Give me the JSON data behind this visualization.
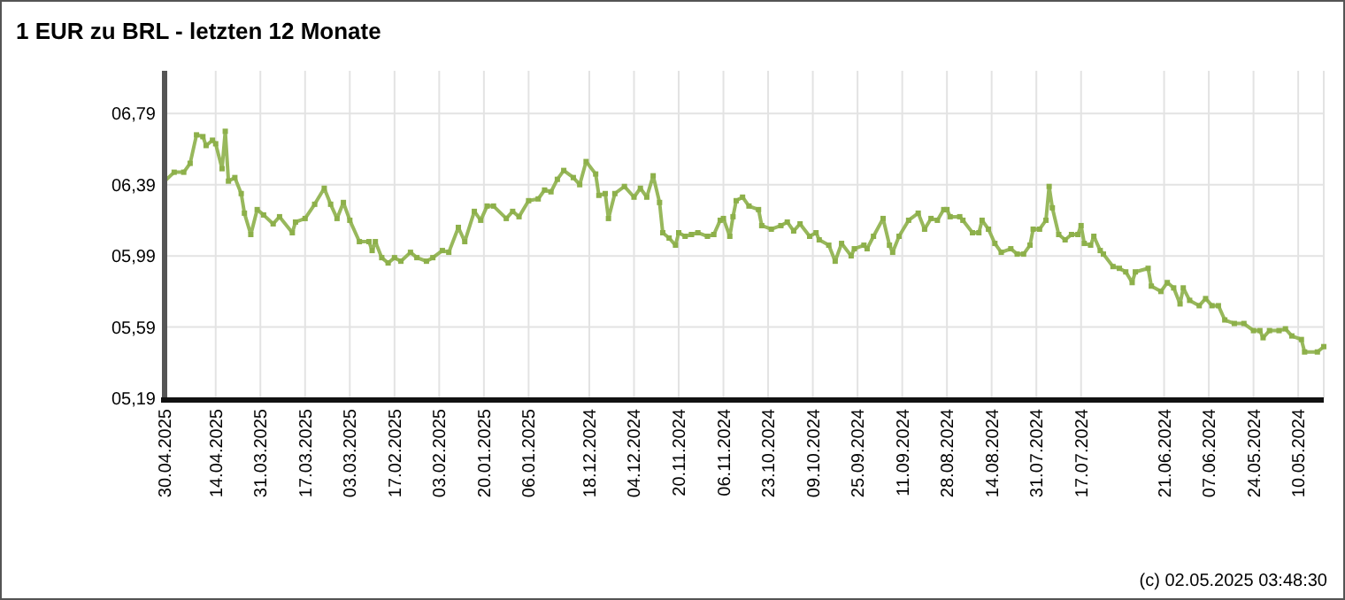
{
  "chart_data": {
    "type": "line",
    "title": "1 EUR zu BRL - letzten 12 Monate",
    "annotations": [
      "(c) 02.05.2025 03:48:30"
    ],
    "xlim": [
      "2025-04-30",
      "2024-05-02"
    ],
    "xticks": [
      {
        "value": "2025-04-30",
        "label": "30.04.2025"
      },
      {
        "value": "2025-04-14",
        "label": "14.04.2025"
      },
      {
        "value": "2025-03-31",
        "label": "31.03.2025"
      },
      {
        "value": "2025-03-17",
        "label": "17.03.2025"
      },
      {
        "value": "2025-03-03",
        "label": "03.03.2025"
      },
      {
        "value": "2025-02-17",
        "label": "17.02.2025"
      },
      {
        "value": "2025-02-03",
        "label": "03.02.2025"
      },
      {
        "value": "2025-01-20",
        "label": "20.01.2025"
      },
      {
        "value": "2025-01-06",
        "label": "06.01.2025"
      },
      {
        "value": "2024-12-18",
        "label": "18.12.2024"
      },
      {
        "value": "2024-12-04",
        "label": "04.12.2024"
      },
      {
        "value": "2024-11-20",
        "label": "20.11.2024"
      },
      {
        "value": "2024-11-06",
        "label": "06.11.2024"
      },
      {
        "value": "2024-10-23",
        "label": "23.10.2024"
      },
      {
        "value": "2024-10-09",
        "label": "09.10.2024"
      },
      {
        "value": "2024-09-25",
        "label": "25.09.2024"
      },
      {
        "value": "2024-09-11",
        "label": "11.09.2024"
      },
      {
        "value": "2024-08-28",
        "label": "28.08.2024"
      },
      {
        "value": "2024-08-14",
        "label": "14.08.2024"
      },
      {
        "value": "2024-07-31",
        "label": "31.07.2024"
      },
      {
        "value": "2024-07-17",
        "label": "17.07.2024"
      },
      {
        "value": "2024-06-21",
        "label": "21.06.2024"
      },
      {
        "value": "2024-06-07",
        "label": "07.06.2024"
      },
      {
        "value": "2024-05-24",
        "label": "24.05.2024"
      },
      {
        "value": "2024-05-10",
        "label": "10.05.2024"
      }
    ],
    "ylim": [
      5.19,
      7.03
    ],
    "yticks": [
      {
        "value": 5.19,
        "label": "05,19"
      },
      {
        "value": 5.59,
        "label": "05,59"
      },
      {
        "value": 5.99,
        "label": "05,99"
      },
      {
        "value": 6.39,
        "label": "06,39"
      },
      {
        "value": 6.79,
        "label": "06,79"
      }
    ],
    "grid": true,
    "marker": "square",
    "line_style": "solid",
    "series": [
      {
        "color": "#8db04a",
        "x": [
          "2025-04-30",
          "2025-04-27",
          "2025-04-24",
          "2025-04-22",
          "2025-04-20",
          "2025-04-18",
          "2025-04-17",
          "2025-04-15",
          "2025-04-14",
          "2025-04-12",
          "2025-04-11",
          "2025-04-10",
          "2025-04-08",
          "2025-04-06",
          "2025-04-05",
          "2025-04-03",
          "2025-04-01",
          "2025-03-30",
          "2025-03-27",
          "2025-03-25",
          "2025-03-21",
          "2025-03-20",
          "2025-03-17",
          "2025-03-14",
          "2025-03-11",
          "2025-03-09",
          "2025-03-07",
          "2025-03-05",
          "2025-03-03",
          "2025-02-28",
          "2025-02-25",
          "2025-02-24",
          "2025-02-23",
          "2025-02-21",
          "2025-02-19",
          "2025-02-17",
          "2025-02-15",
          "2025-02-12",
          "2025-02-10",
          "2025-02-07",
          "2025-02-05",
          "2025-02-02",
          "2025-01-31",
          "2025-01-28",
          "2025-01-26",
          "2025-01-23",
          "2025-01-21",
          "2025-01-19",
          "2025-01-17",
          "2025-01-13",
          "2025-01-11",
          "2025-01-09",
          "2025-01-06",
          "2025-01-03",
          "2025-01-01",
          "2024-12-30",
          "2024-12-28",
          "2024-12-26",
          "2024-12-23",
          "2024-12-21",
          "2024-12-19",
          "2024-12-16",
          "2024-12-15",
          "2024-12-13",
          "2024-12-12",
          "2024-12-10",
          "2024-12-07",
          "2024-12-04",
          "2024-12-02",
          "2024-11-30",
          "2024-11-28",
          "2024-11-26",
          "2024-11-25",
          "2024-11-23",
          "2024-11-21",
          "2024-11-20",
          "2024-11-18",
          "2024-11-16",
          "2024-11-14",
          "2024-11-11",
          "2024-11-09",
          "2024-11-07",
          "2024-11-06",
          "2024-11-04",
          "2024-11-03",
          "2024-11-02",
          "2024-10-31",
          "2024-10-29",
          "2024-10-26",
          "2024-10-25",
          "2024-10-22",
          "2024-10-19",
          "2024-10-17",
          "2024-10-15",
          "2024-10-13",
          "2024-10-10",
          "2024-10-08",
          "2024-10-07",
          "2024-10-04",
          "2024-10-02",
          "2024-09-30",
          "2024-09-27",
          "2024-09-26",
          "2024-09-23",
          "2024-09-22",
          "2024-09-20",
          "2024-09-17",
          "2024-09-15",
          "2024-09-14",
          "2024-09-12",
          "2024-09-09",
          "2024-09-06",
          "2024-09-04",
          "2024-09-02",
          "2024-08-31",
          "2024-08-29",
          "2024-08-28",
          "2024-08-27",
          "2024-08-24",
          "2024-08-23",
          "2024-08-20",
          "2024-08-18",
          "2024-08-17",
          "2024-08-15",
          "2024-08-13",
          "2024-08-11",
          "2024-08-08",
          "2024-08-06",
          "2024-08-04",
          "2024-08-02",
          "2024-08-01",
          "2024-07-30",
          "2024-07-28",
          "2024-07-27",
          "2024-07-26",
          "2024-07-24",
          "2024-07-22",
          "2024-07-20",
          "2024-07-18",
          "2024-07-17",
          "2024-07-16",
          "2024-07-14",
          "2024-07-13",
          "2024-07-11",
          "2024-07-10",
          "2024-07-07",
          "2024-07-05",
          "2024-07-03",
          "2024-07-01",
          "2024-06-30",
          "2024-06-26",
          "2024-06-25",
          "2024-06-22",
          "2024-06-20",
          "2024-06-18",
          "2024-06-16",
          "2024-06-15",
          "2024-06-13",
          "2024-06-10",
          "2024-06-08",
          "2024-06-06",
          "2024-06-04",
          "2024-06-02",
          "2024-05-30",
          "2024-05-27",
          "2024-05-24",
          "2024-05-22",
          "2024-05-21",
          "2024-05-19",
          "2024-05-16",
          "2024-05-14",
          "2024-05-12",
          "2024-05-09",
          "2024-05-08",
          "2024-05-04",
          "2024-05-02"
        ],
        "values": [
          6.41,
          6.46,
          6.46,
          6.51,
          6.67,
          6.66,
          6.61,
          6.64,
          6.62,
          6.48,
          6.69,
          6.41,
          6.43,
          6.34,
          6.23,
          6.11,
          6.25,
          6.22,
          6.17,
          6.21,
          6.12,
          6.18,
          6.2,
          6.28,
          6.37,
          6.28,
          6.2,
          6.29,
          6.19,
          6.07,
          6.07,
          6.02,
          6.07,
          5.98,
          5.95,
          5.98,
          5.96,
          6.01,
          5.98,
          5.96,
          5.98,
          6.02,
          6.01,
          6.15,
          6.07,
          6.24,
          6.19,
          6.27,
          6.27,
          6.2,
          6.24,
          6.21,
          6.3,
          6.31,
          6.36,
          6.35,
          6.42,
          6.47,
          6.43,
          6.39,
          6.52,
          6.45,
          6.33,
          6.34,
          6.2,
          6.34,
          6.38,
          6.32,
          6.37,
          6.32,
          6.44,
          6.29,
          6.12,
          6.09,
          6.05,
          6.12,
          6.1,
          6.11,
          6.12,
          6.1,
          6.11,
          6.19,
          6.2,
          6.1,
          6.21,
          6.3,
          6.32,
          6.27,
          6.25,
          6.16,
          6.14,
          6.16,
          6.18,
          6.13,
          6.17,
          6.1,
          6.12,
          6.08,
          6.05,
          5.96,
          6.06,
          5.99,
          6.03,
          6.05,
          6.03,
          6.1,
          6.2,
          6.05,
          6.01,
          6.1,
          6.19,
          6.23,
          6.14,
          6.2,
          6.19,
          6.25,
          6.25,
          6.21,
          6.21,
          6.19,
          6.12,
          6.12,
          6.19,
          6.14,
          6.06,
          6.01,
          6.03,
          6.0,
          6.0,
          6.05,
          6.14,
          6.14,
          6.19,
          6.38,
          6.26,
          6.11,
          6.08,
          6.11,
          6.11,
          6.16,
          6.06,
          6.05,
          6.1,
          6.02,
          6.0,
          5.93,
          5.92,
          5.9,
          5.84,
          5.9,
          5.92,
          5.82,
          5.79,
          5.84,
          5.81,
          5.72,
          5.81,
          5.74,
          5.71,
          5.75,
          5.71,
          5.71,
          5.63,
          5.61,
          5.61,
          5.57,
          5.57,
          5.53,
          5.57,
          5.57,
          5.58,
          5.54,
          5.52,
          5.45,
          5.45,
          5.48
        ]
      }
    ]
  }
}
